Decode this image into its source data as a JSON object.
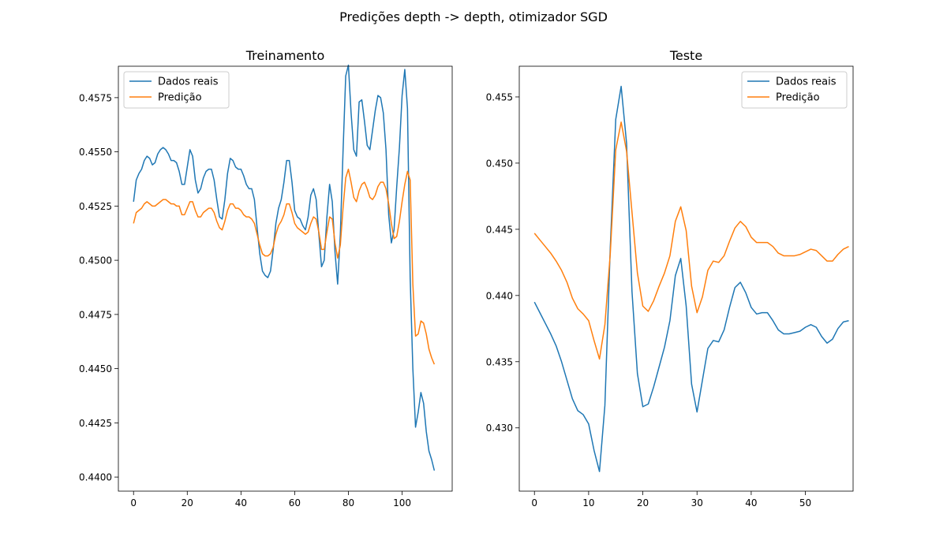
{
  "figure_title": "Predições depth -> depth, otimizador SGD",
  "colors": {
    "real": "#1f77b4",
    "pred": "#ff7f0e"
  },
  "chart_data": [
    {
      "type": "line",
      "title": "Treinamento",
      "xlabel": "",
      "ylabel": "",
      "xlim": [
        -5.65,
        118.65
      ],
      "ylim": [
        0.43935,
        0.45895
      ],
      "xticks": [
        0,
        20,
        40,
        60,
        80,
        100
      ],
      "yticks": [
        0.44,
        0.4425,
        0.445,
        0.4475,
        0.45,
        0.4525,
        0.455,
        0.4575
      ],
      "ytick_labels": [
        "0.4400",
        "0.4425",
        "0.4450",
        "0.4475",
        "0.4500",
        "0.4525",
        "0.4550",
        "0.4575"
      ],
      "grid": false,
      "legend": {
        "position": "top-left",
        "entries": [
          "Dados reais",
          "Predição"
        ]
      },
      "series": [
        {
          "name": "Dados reais",
          "color": "#1f77b4",
          "values": [
            0.4527,
            0.4537,
            0.454,
            0.4542,
            0.4546,
            0.4548,
            0.4547,
            0.4544,
            0.4545,
            0.4549,
            0.4551,
            0.4552,
            0.4551,
            0.4549,
            0.4546,
            0.4546,
            0.4545,
            0.4541,
            0.4535,
            0.4535,
            0.4543,
            0.4551,
            0.4548,
            0.4537,
            0.4531,
            0.4533,
            0.4538,
            0.4541,
            0.4542,
            0.4542,
            0.4537,
            0.4528,
            0.452,
            0.4519,
            0.4528,
            0.454,
            0.4547,
            0.4546,
            0.4543,
            0.4542,
            0.4542,
            0.4539,
            0.4535,
            0.4533,
            0.4533,
            0.4528,
            0.4515,
            0.4503,
            0.4495,
            0.4493,
            0.4492,
            0.4495,
            0.4505,
            0.4517,
            0.4524,
            0.4528,
            0.4536,
            0.4546,
            0.4546,
            0.4536,
            0.4523,
            0.452,
            0.4519,
            0.4516,
            0.4514,
            0.452,
            0.453,
            0.4533,
            0.4528,
            0.4512,
            0.4497,
            0.45,
            0.452,
            0.4535,
            0.4527,
            0.4504,
            0.4489,
            0.4512,
            0.455,
            0.4585,
            0.459,
            0.4568,
            0.4551,
            0.4548,
            0.4573,
            0.4574,
            0.4564,
            0.4553,
            0.4551,
            0.456,
            0.4569,
            0.4576,
            0.4575,
            0.4568,
            0.4551,
            0.4521,
            0.4508,
            0.4514,
            0.4534,
            0.4552,
            0.4576,
            0.4588,
            0.457,
            0.4492,
            0.445,
            0.4423,
            0.443,
            0.4439,
            0.4434,
            0.4421,
            0.4412,
            0.4408,
            0.4403
          ]
        },
        {
          "name": "Predição",
          "color": "#ff7f0e",
          "values": [
            0.4517,
            0.4522,
            0.4523,
            0.4524,
            0.4526,
            0.4527,
            0.4526,
            0.4525,
            0.4525,
            0.4526,
            0.4527,
            0.4528,
            0.4528,
            0.4527,
            0.4526,
            0.4526,
            0.4525,
            0.4525,
            0.4521,
            0.4521,
            0.4524,
            0.4527,
            0.4527,
            0.4523,
            0.452,
            0.452,
            0.4522,
            0.4523,
            0.4524,
            0.4524,
            0.4522,
            0.4518,
            0.4515,
            0.4514,
            0.4518,
            0.4523,
            0.4526,
            0.4526,
            0.4524,
            0.4524,
            0.4523,
            0.4521,
            0.452,
            0.452,
            0.4519,
            0.4517,
            0.4512,
            0.4507,
            0.4503,
            0.4502,
            0.4502,
            0.4503,
            0.4506,
            0.4512,
            0.4516,
            0.4518,
            0.4521,
            0.4526,
            0.4526,
            0.4522,
            0.4517,
            0.4515,
            0.4514,
            0.4513,
            0.4512,
            0.4513,
            0.4517,
            0.452,
            0.4519,
            0.4513,
            0.4505,
            0.4505,
            0.4513,
            0.452,
            0.4519,
            0.4508,
            0.4501,
            0.4507,
            0.4524,
            0.4538,
            0.4542,
            0.4536,
            0.4529,
            0.4527,
            0.4532,
            0.4535,
            0.4536,
            0.4533,
            0.4529,
            0.4528,
            0.453,
            0.4534,
            0.4536,
            0.4536,
            0.4533,
            0.4526,
            0.4517,
            0.451,
            0.4511,
            0.4518,
            0.4527,
            0.4535,
            0.4541,
            0.4537,
            0.4489,
            0.4465,
            0.4466,
            0.4472,
            0.4471,
            0.4466,
            0.4459,
            0.4455,
            0.4452
          ]
        }
      ]
    },
    {
      "type": "line",
      "title": "Teste",
      "xlabel": "",
      "ylabel": "",
      "xlim": [
        -2.8,
        58.8
      ],
      "ylim": [
        0.42522,
        0.45732
      ],
      "xticks": [
        0,
        10,
        20,
        30,
        40,
        50
      ],
      "yticks": [
        0.43,
        0.435,
        0.44,
        0.445,
        0.45,
        0.455
      ],
      "ytick_labels": [
        "0.430",
        "0.435",
        "0.440",
        "0.445",
        "0.450",
        "0.455"
      ],
      "grid": false,
      "legend": {
        "position": "top-right",
        "entries": [
          "Dados reais",
          "Predição"
        ]
      },
      "series": [
        {
          "name": "Dados reais",
          "color": "#1f77b4",
          "values": [
            0.4395,
            0.4387,
            0.4379,
            0.4371,
            0.4362,
            0.435,
            0.4336,
            0.4322,
            0.4313,
            0.431,
            0.4303,
            0.4283,
            0.4267,
            0.4317,
            0.4437,
            0.4533,
            0.4558,
            0.4515,
            0.4403,
            0.4341,
            0.4316,
            0.4318,
            0.4331,
            0.4346,
            0.4361,
            0.4381,
            0.4415,
            0.4428,
            0.4392,
            0.4333,
            0.4312,
            0.4336,
            0.436,
            0.4366,
            0.4365,
            0.4374,
            0.4391,
            0.4406,
            0.441,
            0.4402,
            0.4391,
            0.4386,
            0.4387,
            0.4387,
            0.4381,
            0.4374,
            0.4371,
            0.4371,
            0.4372,
            0.4373,
            0.4376,
            0.4378,
            0.4376,
            0.4369,
            0.4364,
            0.4367,
            0.4375,
            0.438,
            0.4381
          ]
        },
        {
          "name": "Predição",
          "color": "#ff7f0e",
          "values": [
            0.4447,
            0.4442,
            0.4437,
            0.4432,
            0.4426,
            0.4419,
            0.441,
            0.4398,
            0.439,
            0.4386,
            0.4381,
            0.4366,
            0.4352,
            0.4378,
            0.4432,
            0.451,
            0.4531,
            0.4509,
            0.4463,
            0.4417,
            0.4392,
            0.4388,
            0.4396,
            0.4407,
            0.4417,
            0.443,
            0.4456,
            0.4467,
            0.4449,
            0.4407,
            0.4387,
            0.4399,
            0.4419,
            0.4426,
            0.4425,
            0.443,
            0.4441,
            0.4451,
            0.4456,
            0.4452,
            0.4444,
            0.444,
            0.444,
            0.444,
            0.4437,
            0.4432,
            0.443,
            0.443,
            0.443,
            0.4431,
            0.4433,
            0.4435,
            0.4434,
            0.443,
            0.4426,
            0.4426,
            0.4431,
            0.4435,
            0.4437
          ]
        }
      ]
    }
  ]
}
